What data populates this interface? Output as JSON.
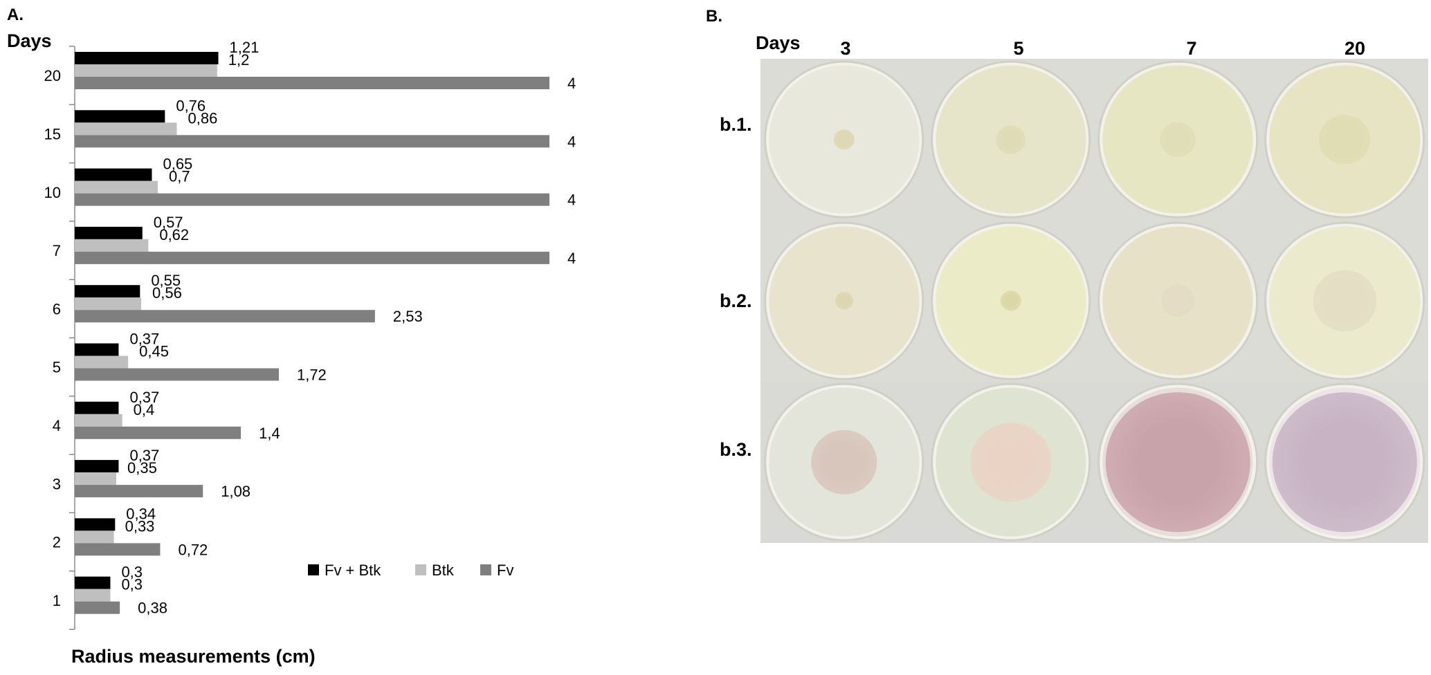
{
  "panel_a": {
    "letter": "A.",
    "days_label": "Days"
  },
  "panel_b": {
    "letter": "B.",
    "days_label": "Days",
    "columns": [
      "3",
      "5",
      "7",
      "20"
    ],
    "rows": [
      "b.1.",
      "b.2.",
      "b.3."
    ],
    "plates": [
      [
        {
          "medium": "#e9e8dd",
          "colony": "#ddd7b4",
          "size": 0.14
        },
        {
          "medium": "#e6e5c9",
          "colony": "#dedcb8",
          "size": 0.2
        },
        {
          "medium": "#e7e6c2",
          "colony": "#e0deb7",
          "size": 0.24
        },
        {
          "medium": "#e7e4c3",
          "colony": "#e0dcb3",
          "size": 0.34
        }
      ],
      [
        {
          "medium": "#e7e3cc",
          "colony": "#ddd6b0",
          "size": 0.12
        },
        {
          "medium": "#ecebc8",
          "colony": "#dcd8a6",
          "size": 0.14
        },
        {
          "medium": "#e6e1c7",
          "colony": "#e4dcc4",
          "size": 0.22
        },
        {
          "medium": "#ebeacd",
          "colony": "#e3dec4",
          "size": 0.42
        }
      ],
      [
        {
          "medium": "#e4e5da",
          "colony": "#d8c6bc",
          "size": 0.44
        },
        {
          "medium": "#dfe3d1",
          "colony": "#ead3c5",
          "size": 0.54
        },
        {
          "medium": "#e7ddd9",
          "colony": "#c9a3aa",
          "size": 0.96
        },
        {
          "medium": "#ece4e6",
          "colony": "#c7b3c4",
          "size": 0.96
        }
      ]
    ]
  },
  "chart_data": {
    "type": "bar",
    "orientation": "horizontal",
    "title": "",
    "xlabel": "Radius measurements (cm)",
    "ylabel": "Days",
    "categories": [
      "1",
      "2",
      "3",
      "4",
      "5",
      "6",
      "7",
      "10",
      "15",
      "20"
    ],
    "series": [
      {
        "name": "Fv + Btk",
        "color": "#000000",
        "values": [
          0.3,
          0.34,
          0.37,
          0.37,
          0.37,
          0.55,
          0.57,
          0.65,
          0.76,
          1.21
        ],
        "labels": [
          "0,3",
          "0,34",
          "0,37",
          "0,37",
          "0,37",
          "0,55",
          "0,57",
          "0,65",
          "0,76",
          "1,21"
        ]
      },
      {
        "name": "Btk",
        "color": "#bfbfbf",
        "values": [
          0.3,
          0.33,
          0.35,
          0.4,
          0.45,
          0.56,
          0.62,
          0.7,
          0.86,
          1.2
        ],
        "labels": [
          "0,3",
          "0,33",
          "0,35",
          "0,4",
          "0,45",
          "0,56",
          "0,62",
          "0,7",
          "0,86",
          "1,2"
        ]
      },
      {
        "name": "Fv",
        "color": "#7f7f7f",
        "values": [
          0.38,
          0.72,
          1.08,
          1.4,
          1.72,
          2.53,
          4,
          4,
          4,
          4
        ],
        "labels": [
          "0,38",
          "0,72",
          "1,08",
          "1,4",
          "1,72",
          "2,53",
          "4",
          "4",
          "4",
          "4"
        ]
      }
    ],
    "xlim": [
      0,
      4
    ],
    "legend": "bottom-right",
    "grid": false
  }
}
